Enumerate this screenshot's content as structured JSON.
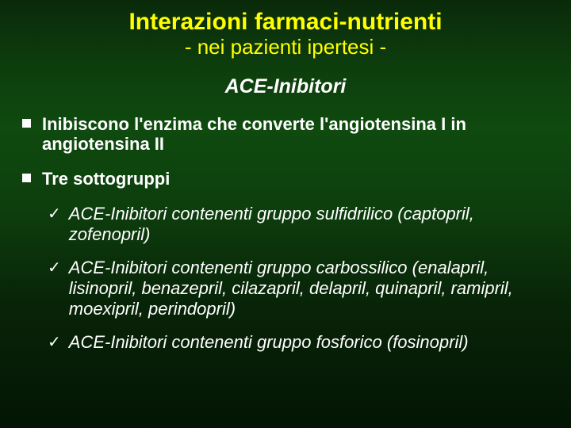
{
  "colors": {
    "title": "#ffff00",
    "text": "#ffffff",
    "bg_gradient_top": "#0a2a0a",
    "bg_gradient_mid": "#0f4a0f",
    "bg_gradient_bottom": "#041504"
  },
  "typography": {
    "family": "Comic Sans MS",
    "title_size_pt": 30,
    "subtitle_size_pt": 26,
    "heading_size_pt": 25,
    "body_size_pt": 22
  },
  "title": "Interazioni farmaci-nutrienti",
  "subtitle": "- nei pazienti ipertesi -",
  "section_heading": "ACE-Inibitori",
  "bullets": [
    {
      "text": "Inibiscono l'enzima che converte l'angiotensina I in angiotensina II",
      "bold": true
    },
    {
      "text": "Tre sottogruppi",
      "bold": true
    }
  ],
  "checks": [
    {
      "text": "ACE-Inibitori contenenti gruppo sulfidrilico (captopril, zofenopril)"
    },
    {
      "text": "ACE-Inibitori contenenti gruppo carbossilico (enalapril, lisinopril, benazepril, cilazapril, delapril, quinapril, ramipril, moexipril, perindopril)"
    },
    {
      "text": "ACE-Inibitori contenenti gruppo fosforico (fosinopril)"
    }
  ],
  "markers": {
    "check_glyph": "✓"
  }
}
